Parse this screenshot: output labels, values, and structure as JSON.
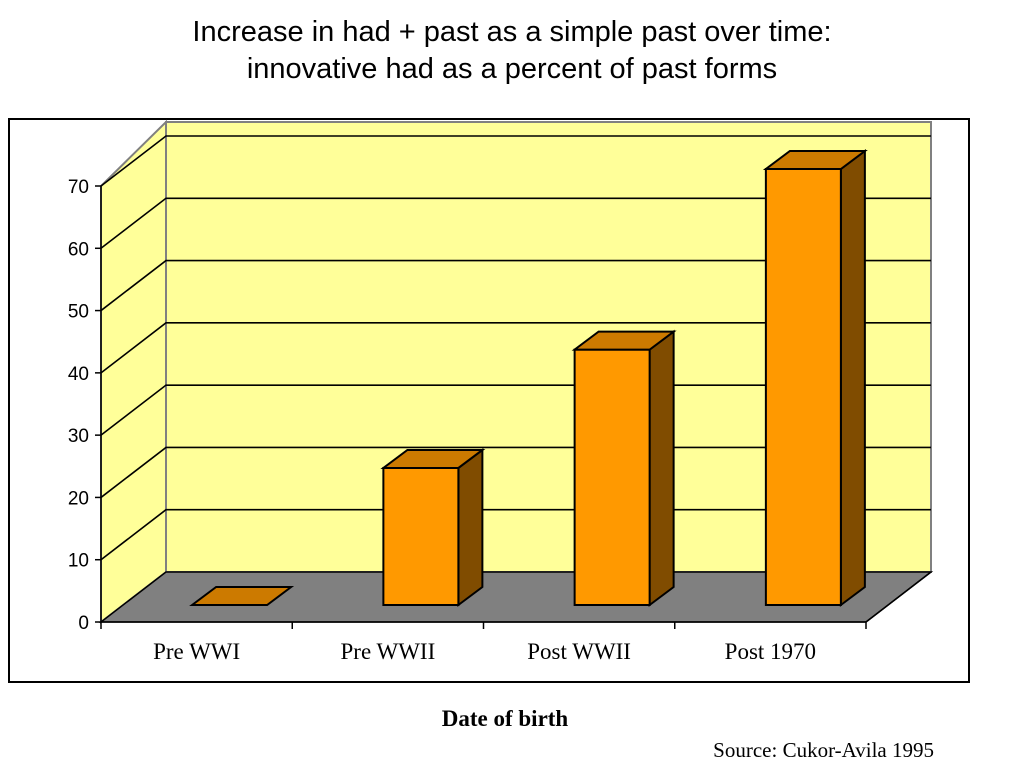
{
  "title_line1": "Increase in had + past as a simple past over time:",
  "title_line2": "innovative had as a percent of past forms",
  "source": "Source:  Cukor-Avila 1995",
  "colors": {
    "wall": "#ffff99",
    "floor": "#808080",
    "bar_front": "#ff9900",
    "bar_side": "#804c00",
    "bar_top": "#cc7a00"
  },
  "chart_data": {
    "type": "bar",
    "categories": [
      "Pre WWI",
      "Pre WWII",
      "Post WWII",
      "Post 1970"
    ],
    "values": [
      0,
      22,
      41,
      70
    ],
    "xlabel": "Date of birth",
    "ylabel": "",
    "yticks": [
      "0",
      "10",
      "20",
      "30",
      "40",
      "50",
      "60",
      "70"
    ],
    "ylim": [
      0,
      70
    ],
    "grid": true
  }
}
